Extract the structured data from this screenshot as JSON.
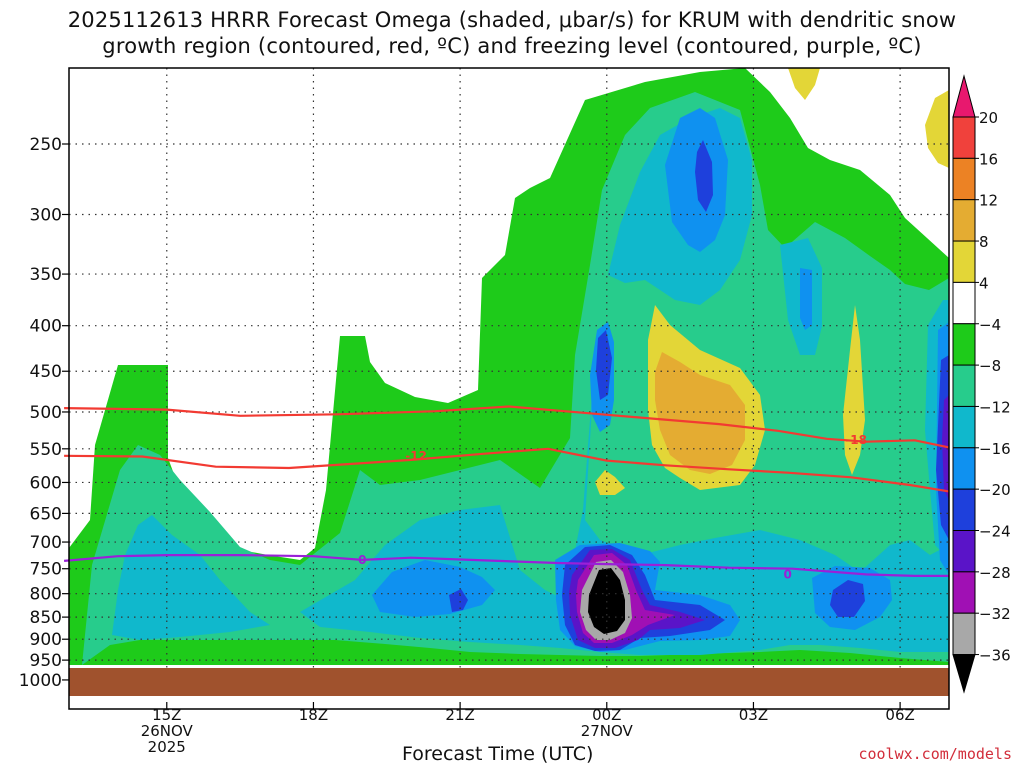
{
  "title_line1": "2025112613 HRRR Forecast Omega (shaded, μbar/s) for KRUM with dendritic snow",
  "title_line2": "growth region (contoured, red, ºC) and freezing level (contoured, purple, ºC)",
  "credit": "coolwx.com/models",
  "chart_data": {
    "type": "heatmap",
    "xlabel": "Forecast Time (UTC)",
    "x_ticks": [
      {
        "hour": 15,
        "lines": [
          "15Z",
          "26NOV",
          "2025"
        ]
      },
      {
        "hour": 18,
        "lines": [
          "18Z"
        ]
      },
      {
        "hour": 21,
        "lines": [
          "21Z"
        ]
      },
      {
        "hour": 24,
        "lines": [
          "00Z",
          "27NOV"
        ]
      },
      {
        "hour": 27,
        "lines": [
          "03Z"
        ]
      },
      {
        "hour": 30,
        "lines": [
          "06Z"
        ]
      }
    ],
    "xlim_hours": [
      13,
      31
    ],
    "y_ticks": [
      250,
      300,
      350,
      400,
      450,
      500,
      550,
      600,
      650,
      700,
      750,
      800,
      850,
      900,
      950,
      1000
    ],
    "ylim_hPa": [
      200,
      1025
    ],
    "y_axis_scale": "log-pressure (inverted)",
    "ground_level_hPa": 980,
    "colorbar": {
      "ticks": [
        "20",
        "16",
        "12",
        "8",
        "4",
        "−4",
        "−8",
        "−12",
        "−16",
        "−20",
        "−24",
        "−28",
        "−32",
        "−36"
      ],
      "bins": [
        {
          "range": "above 20",
          "color": "#e8186e"
        },
        {
          "range": "16 to 20",
          "color": "#f0413c"
        },
        {
          "range": "12 to 16",
          "color": "#ec8224"
        },
        {
          "range": "8 to 12",
          "color": "#e4ac32"
        },
        {
          "range": "4 to 8",
          "color": "#e3d637"
        },
        {
          "range": "-4 to 4",
          "color": "#ffffff"
        },
        {
          "range": "-8 to -4",
          "color": "#1ecb1a"
        },
        {
          "range": "-12 to -8",
          "color": "#27cc8c"
        },
        {
          "range": "-16 to -12",
          "color": "#10b8cc"
        },
        {
          "range": "-20 to -16",
          "color": "#0f91f0"
        },
        {
          "range": "-24 to -20",
          "color": "#1e40dc"
        },
        {
          "range": "-28 to -24",
          "color": "#5a14c8"
        },
        {
          "range": "-32 to -28",
          "color": "#a010b4"
        },
        {
          "range": "-36 to -32",
          "color": "#a8a8a8"
        },
        {
          "range": "below -36",
          "color": "#000000"
        }
      ]
    },
    "contours": [
      {
        "name": "-12",
        "color": "#f23a32",
        "points": [
          [
            12.9,
            560
          ],
          [
            14.5,
            561
          ],
          [
            16.0,
            576
          ],
          [
            17.5,
            578
          ],
          [
            20.0,
            566
          ],
          [
            21.5,
            557
          ],
          [
            22.8,
            550
          ],
          [
            24.0,
            567
          ],
          [
            25.2,
            574
          ],
          [
            26.5,
            580
          ],
          [
            27.7,
            585
          ],
          [
            29.0,
            592
          ],
          [
            30.2,
            604
          ],
          [
            31.0,
            614
          ]
        ]
      },
      {
        "name": "-18",
        "color": "#f23a32",
        "points": [
          [
            12.9,
            495
          ],
          [
            14.0,
            496
          ],
          [
            15.0,
            497
          ],
          [
            16.5,
            505
          ],
          [
            18.5,
            503
          ],
          [
            20.5,
            499
          ],
          [
            22.0,
            493
          ],
          [
            23.5,
            501
          ],
          [
            25.0,
            509
          ],
          [
            26.3,
            516
          ],
          [
            27.5,
            525
          ],
          [
            28.5,
            536
          ],
          [
            29.3,
            540
          ],
          [
            30.3,
            538
          ],
          [
            31.0,
            548
          ]
        ]
      },
      {
        "name": "0",
        "color": "#9a20d8",
        "points": [
          [
            12.9,
            735
          ],
          [
            14.0,
            726
          ],
          [
            15.0,
            724
          ],
          [
            16.5,
            724
          ],
          [
            18.0,
            726
          ],
          [
            19.0,
            733
          ],
          [
            20.0,
            729
          ],
          [
            21.5,
            734
          ],
          [
            23.0,
            739
          ],
          [
            24.0,
            741
          ],
          [
            25.2,
            743
          ],
          [
            26.5,
            748
          ],
          [
            27.8,
            750
          ],
          [
            29.3,
            761
          ],
          [
            30.3,
            764
          ],
          [
            31.0,
            764
          ]
        ]
      }
    ],
    "contour_labels": [
      {
        "text": "-12",
        "hour": 20.1,
        "hPa": 559
      },
      {
        "text": "-18",
        "hour": 29.1,
        "hPa": 536
      },
      {
        "text": "0",
        "hour": 19.0,
        "hPa": 731
      },
      {
        "text": "0",
        "hour": 27.7,
        "hPa": 759
      }
    ]
  }
}
